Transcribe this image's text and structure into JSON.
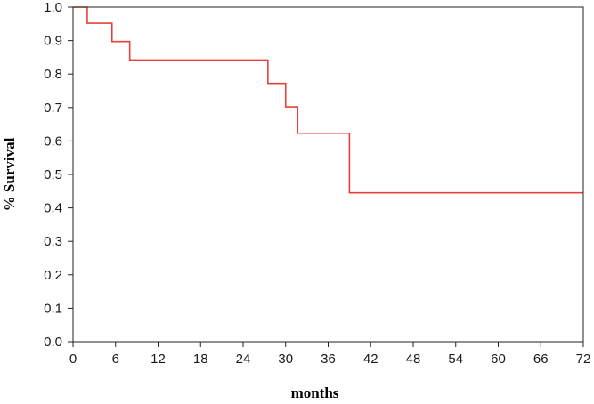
{
  "chart_data": {
    "type": "line",
    "step": "post",
    "xlabel": "months",
    "ylabel": "% Survival",
    "xlim": [
      0,
      72
    ],
    "ylim": [
      0.0,
      1.0
    ],
    "xticks": [
      0,
      6,
      12,
      18,
      24,
      30,
      36,
      42,
      48,
      54,
      60,
      66,
      72
    ],
    "yticks": [
      0.0,
      0.1,
      0.2,
      0.3,
      0.4,
      0.5,
      0.6,
      0.7,
      0.8,
      0.9,
      1.0
    ],
    "xtick_labels": [
      "0",
      "6",
      "12",
      "18",
      "24",
      "30",
      "36",
      "42",
      "48",
      "54",
      "60",
      "66",
      "72"
    ],
    "ytick_labels": [
      "0.0",
      "0.1",
      "0.2",
      "0.3",
      "0.4",
      "0.5",
      "0.6",
      "0.7",
      "0.8",
      "0.9",
      "1.0"
    ],
    "grid": false,
    "series": [
      {
        "color": "#e8403a",
        "x": [
          0,
          2,
          5.5,
          8,
          27.5,
          30,
          31.7,
          39,
          72
        ],
        "y": [
          1.0,
          0.952,
          0.897,
          0.842,
          0.772,
          0.702,
          0.623,
          0.445,
          0.445
        ]
      }
    ]
  }
}
